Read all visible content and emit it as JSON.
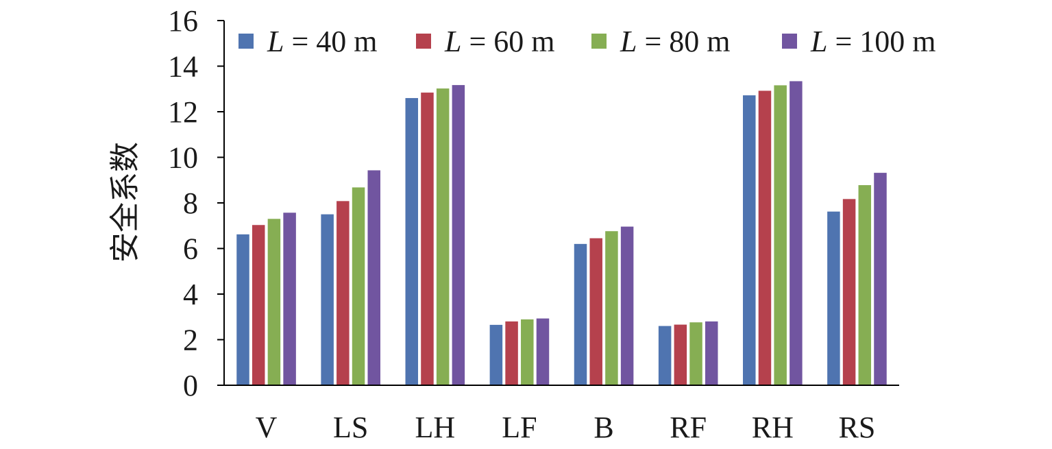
{
  "chart_data": {
    "type": "bar",
    "title": "",
    "xlabel": "",
    "ylabel": "安全系数",
    "ylim": [
      0,
      16
    ],
    "yticks": [
      0,
      2,
      4,
      6,
      8,
      10,
      12,
      14,
      16
    ],
    "grid": false,
    "legend_position": "top",
    "categories": [
      "V",
      "LS",
      "LH",
      "LF",
      "B",
      "RF",
      "RH",
      "RS"
    ],
    "series": [
      {
        "name_var": "L",
        "name_rest": " = 40 m",
        "color": "#4f74b0",
        "values": [
          6.62,
          7.5,
          12.6,
          2.65,
          6.2,
          2.6,
          12.72,
          7.62
        ]
      },
      {
        "name_var": "L",
        "name_rest": " = 60 m",
        "color": "#b5414d",
        "values": [
          7.03,
          8.08,
          12.84,
          2.8,
          6.45,
          2.66,
          12.92,
          8.17
        ]
      },
      {
        "name_var": "L",
        "name_rest": " = 80 m",
        "color": "#86ae53",
        "values": [
          7.3,
          8.68,
          13.02,
          2.89,
          6.76,
          2.76,
          13.16,
          8.78
        ]
      },
      {
        "name_var": "L",
        "name_rest": " = 100 m",
        "color": "#7155a0",
        "values": [
          7.57,
          9.43,
          13.17,
          2.93,
          6.96,
          2.8,
          13.34,
          9.32
        ]
      }
    ]
  }
}
